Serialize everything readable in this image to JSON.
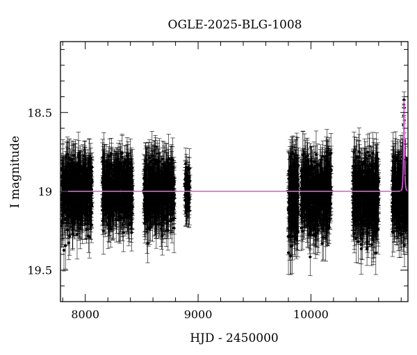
{
  "chart_data": {
    "type": "scatter",
    "title": "OGLE-2025-BLG-1008",
    "xlabel": "HJD - 2450000",
    "ylabel": "I magnitude",
    "xlim": [
      7780,
      10860
    ],
    "ylim": [
      19.7,
      18.05
    ],
    "y_inverted": true,
    "x_ticks": [
      8000,
      9000,
      10000
    ],
    "y_ticks": [
      18.5,
      19,
      19.5
    ],
    "y_tick_labels": [
      "18.5",
      "19",
      "19.5"
    ],
    "grid": false,
    "legend": "none",
    "colors": {
      "points": "#000000",
      "errorbars": "#000000",
      "model": "#e060e0",
      "axes": "#000000"
    },
    "observing_seasons": [
      {
        "start": 7790,
        "end": 8060,
        "median_mag": 19.0,
        "scatter": 0.11,
        "error": 0.12,
        "n": 500
      },
      {
        "start": 8150,
        "end": 8420,
        "median_mag": 19.0,
        "scatter": 0.1,
        "error": 0.12,
        "n": 500
      },
      {
        "start": 8520,
        "end": 8790,
        "median_mag": 19.0,
        "scatter": 0.1,
        "error": 0.12,
        "n": 500
      },
      {
        "start": 8880,
        "end": 8930,
        "median_mag": 19.0,
        "scatter": 0.08,
        "error": 0.1,
        "n": 60
      },
      {
        "start": 9800,
        "end": 9890,
        "median_mag": 19.05,
        "scatter": 0.14,
        "error": 0.14,
        "n": 180
      },
      {
        "start": 9910,
        "end": 10180,
        "median_mag": 19.02,
        "scatter": 0.12,
        "error": 0.12,
        "n": 500
      },
      {
        "start": 10370,
        "end": 10600,
        "median_mag": 19.03,
        "scatter": 0.12,
        "error": 0.13,
        "n": 450
      },
      {
        "start": 10720,
        "end": 10860,
        "median_mag": 19.02,
        "scatter": 0.11,
        "error": 0.13,
        "n": 300
      }
    ],
    "event_peak": [
      {
        "x": 10820,
        "y": 18.58
      },
      {
        "x": 10822,
        "y": 18.52
      },
      {
        "x": 10824,
        "y": 18.45
      },
      {
        "x": 10825,
        "y": 18.42
      },
      {
        "x": 10826,
        "y": 18.47
      },
      {
        "x": 10827,
        "y": 18.55
      },
      {
        "x": 10828,
        "y": 18.68
      }
    ],
    "model": {
      "type": "point-lens microlensing",
      "baseline_mag": 19.0,
      "t0": 10825,
      "tE": 6,
      "peak_mag": 18.42
    }
  }
}
